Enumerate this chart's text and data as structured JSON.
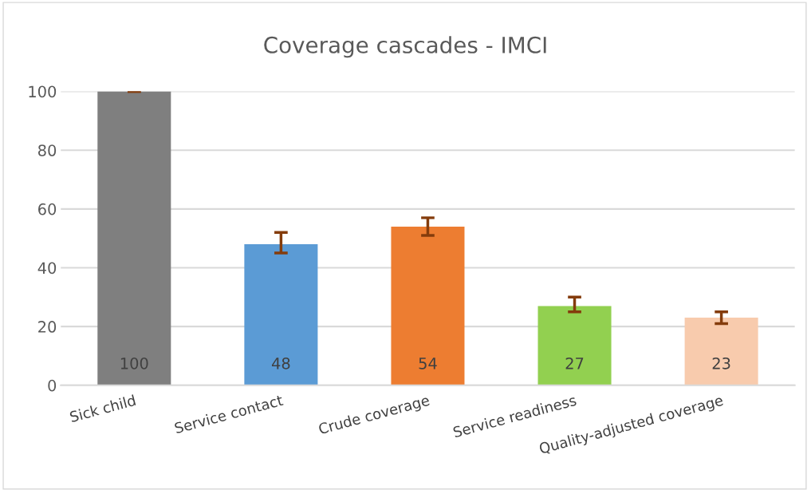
{
  "chart_data": {
    "type": "bar",
    "title": "Coverage cascades - IMCI",
    "categories": [
      "Sick child",
      "Service contact",
      "Crude coverage",
      "Service readiness",
      "Quality-adjusted coverage"
    ],
    "values": [
      100,
      48,
      54,
      27,
      23
    ],
    "colors": [
      "#7f7f7f",
      "#5b9bd5",
      "#ed7d31",
      "#92d050",
      "#f8cbad"
    ],
    "errors": [
      [
        100,
        100
      ],
      [
        45,
        52
      ],
      [
        51,
        57
      ],
      [
        25,
        30
      ],
      [
        21,
        25
      ]
    ],
    "ylim": [
      0,
      100
    ],
    "yticks": [
      0,
      20,
      40,
      60,
      80,
      100
    ],
    "grid": "y",
    "data_labels": true
  }
}
